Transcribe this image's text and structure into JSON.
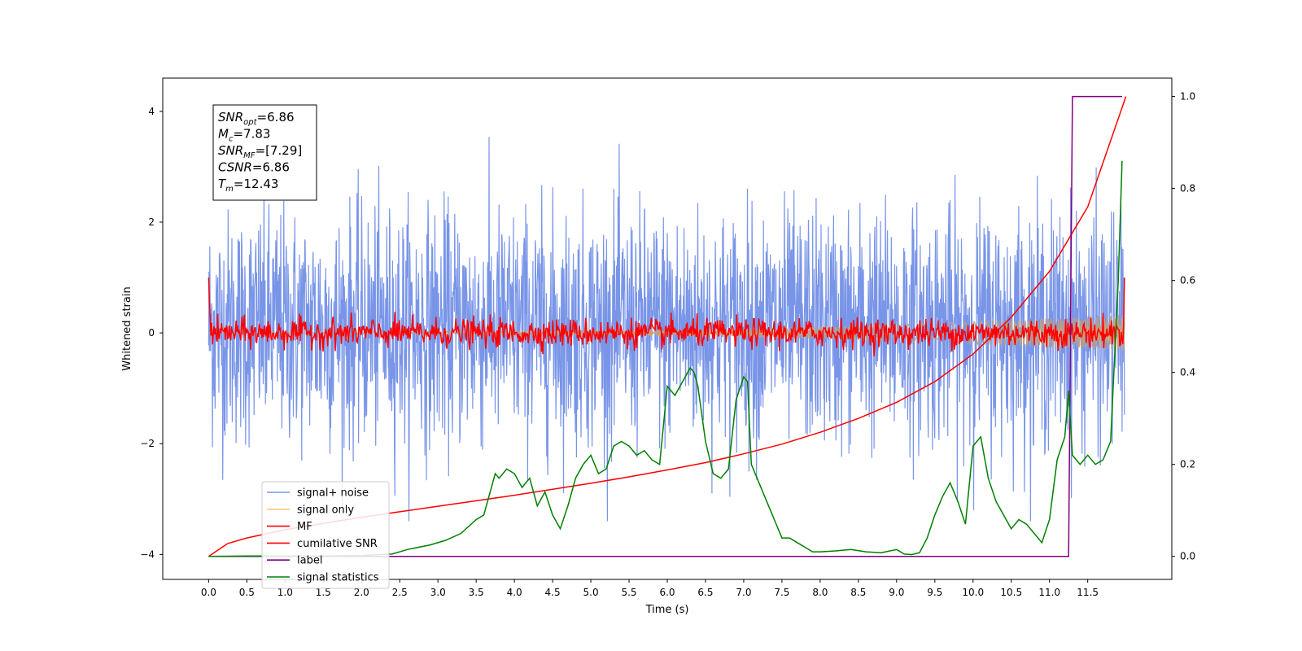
{
  "chart_data": {
    "type": "line",
    "xlabel": "Time (s)",
    "ylabel": "Whitened strain",
    "xlim": [
      -0.6,
      12.6
    ],
    "ylim": [
      -4.45,
      4.6
    ],
    "y2lim": [
      -0.05,
      1.04
    ],
    "xticks": [
      0,
      0.5,
      1,
      1.5,
      2,
      2.5,
      3,
      3.5,
      4,
      4.5,
      5,
      5.5,
      6,
      6.5,
      7,
      7.5,
      8,
      8.5,
      9,
      9.5,
      10,
      10.5,
      11,
      11.5
    ],
    "xtick_labels": [
      "0.0",
      "0.5",
      "1.0",
      "1.5",
      "2.0",
      "2.5",
      "3.0",
      "3.5",
      "4.0",
      "4.5",
      "5.0",
      "5.5",
      "6.0",
      "6.5",
      "7.0",
      "7.5",
      "8.0",
      "8.5",
      "9.0",
      "9.5",
      "10.0",
      "10.5",
      "11.0",
      "11.5"
    ],
    "yticks": [
      -4,
      -2,
      0,
      2,
      4
    ],
    "ytick_labels": [
      "−4",
      "−2",
      "0",
      "2",
      "4"
    ],
    "y2ticks": [
      0,
      0.2,
      0.4,
      0.6,
      0.8,
      1
    ],
    "y2tick_labels": [
      "0.0",
      "0.2",
      "0.4",
      "0.6",
      "0.8",
      "1.0"
    ],
    "grid": false,
    "legend_position": "lower-left",
    "annotation": {
      "lines": [
        {
          "main": "SNR",
          "sub": "opt",
          "rest": "=6.86"
        },
        {
          "main": "M",
          "sub": "c",
          "rest": "=7.83"
        },
        {
          "main": "SNR",
          "sub": "MF",
          "rest": "=[7.29]"
        },
        {
          "main": "CSNR",
          "sub": "",
          "rest": "=6.86"
        },
        {
          "main": "T",
          "sub": "m",
          "rest": "=12.43"
        }
      ]
    },
    "series": [
      {
        "name": "signal+ noise",
        "color": "#7995e8",
        "axis": "left",
        "description_of_shape": "dense noise roughly between -3.5 and 4.2"
      },
      {
        "name": "signal only",
        "color": "#ffc87a",
        "axis": "left",
        "amplitude_start": 0.02,
        "amplitude_end": 0.33
      },
      {
        "name": "MF",
        "color": "#ff0000",
        "axis": "left",
        "amplitude": 0.15,
        "start_value": 1.0,
        "end_value": 1.0
      },
      {
        "name": "cumilative SNR",
        "color": "#ff0000",
        "axis": "right",
        "x": [
          0,
          0.25,
          0.5,
          1,
          1.5,
          2,
          2.5,
          3,
          3.5,
          4,
          4.5,
          5,
          5.5,
          6,
          6.5,
          7,
          7.5,
          8,
          8.5,
          9,
          9.5,
          10,
          10.5,
          11,
          11.5,
          12
        ],
        "values": [
          0,
          0.028,
          0.04,
          0.058,
          0.072,
          0.085,
          0.097,
          0.109,
          0.121,
          0.133,
          0.146,
          0.159,
          0.173,
          0.188,
          0.204,
          0.223,
          0.244,
          0.27,
          0.3,
          0.335,
          0.38,
          0.44,
          0.52,
          0.62,
          0.76,
          1.0
        ]
      },
      {
        "name": "label",
        "color": "#800080",
        "axis": "right",
        "x": [
          0,
          11.25,
          11.3,
          11.95
        ],
        "values": [
          0,
          0,
          1,
          1
        ]
      },
      {
        "name": "signal statistics",
        "color": "#008000",
        "axis": "right",
        "x": [
          0,
          0.5,
          1,
          1.5,
          2,
          2.4,
          2.6,
          2.9,
          3.1,
          3.3,
          3.5,
          3.6,
          3.75,
          3.8,
          3.9,
          4.0,
          4.1,
          4.2,
          4.3,
          4.4,
          4.5,
          4.6,
          4.7,
          4.8,
          4.9,
          5.0,
          5.1,
          5.2,
          5.3,
          5.4,
          5.5,
          5.6,
          5.7,
          5.8,
          5.9,
          6.0,
          6.05,
          6.1,
          6.2,
          6.3,
          6.35,
          6.4,
          6.5,
          6.6,
          6.7,
          6.8,
          6.9,
          7.0,
          7.05,
          7.1,
          7.2,
          7.3,
          7.4,
          7.5,
          7.6,
          7.7,
          7.8,
          7.9,
          8.0,
          8.2,
          8.4,
          8.6,
          8.8,
          9.0,
          9.1,
          9.2,
          9.3,
          9.4,
          9.5,
          9.6,
          9.7,
          9.8,
          9.9,
          10.0,
          10.1,
          10.2,
          10.3,
          10.4,
          10.5,
          10.6,
          10.7,
          10.8,
          10.9,
          11.0,
          11.1,
          11.2,
          11.25,
          11.3,
          11.4,
          11.5,
          11.6,
          11.7,
          11.8,
          11.9,
          11.95
        ],
        "values": [
          0,
          0.001,
          0.001,
          0.001,
          0.002,
          0.005,
          0.015,
          0.025,
          0.035,
          0.05,
          0.08,
          0.09,
          0.18,
          0.17,
          0.19,
          0.18,
          0.15,
          0.17,
          0.11,
          0.14,
          0.09,
          0.06,
          0.11,
          0.17,
          0.2,
          0.22,
          0.18,
          0.19,
          0.24,
          0.25,
          0.24,
          0.22,
          0.23,
          0.21,
          0.2,
          0.37,
          0.36,
          0.35,
          0.38,
          0.41,
          0.4,
          0.37,
          0.25,
          0.18,
          0.17,
          0.19,
          0.34,
          0.39,
          0.38,
          0.2,
          0.16,
          0.12,
          0.08,
          0.04,
          0.04,
          0.03,
          0.02,
          0.01,
          0.01,
          0.012,
          0.015,
          0.01,
          0.008,
          0.015,
          0.005,
          0.004,
          0.008,
          0.04,
          0.09,
          0.13,
          0.16,
          0.12,
          0.07,
          0.24,
          0.26,
          0.17,
          0.12,
          0.09,
          0.06,
          0.08,
          0.07,
          0.05,
          0.03,
          0.08,
          0.21,
          0.26,
          0.36,
          0.22,
          0.2,
          0.22,
          0.2,
          0.21,
          0.25,
          0.6,
          0.86
        ]
      }
    ]
  }
}
